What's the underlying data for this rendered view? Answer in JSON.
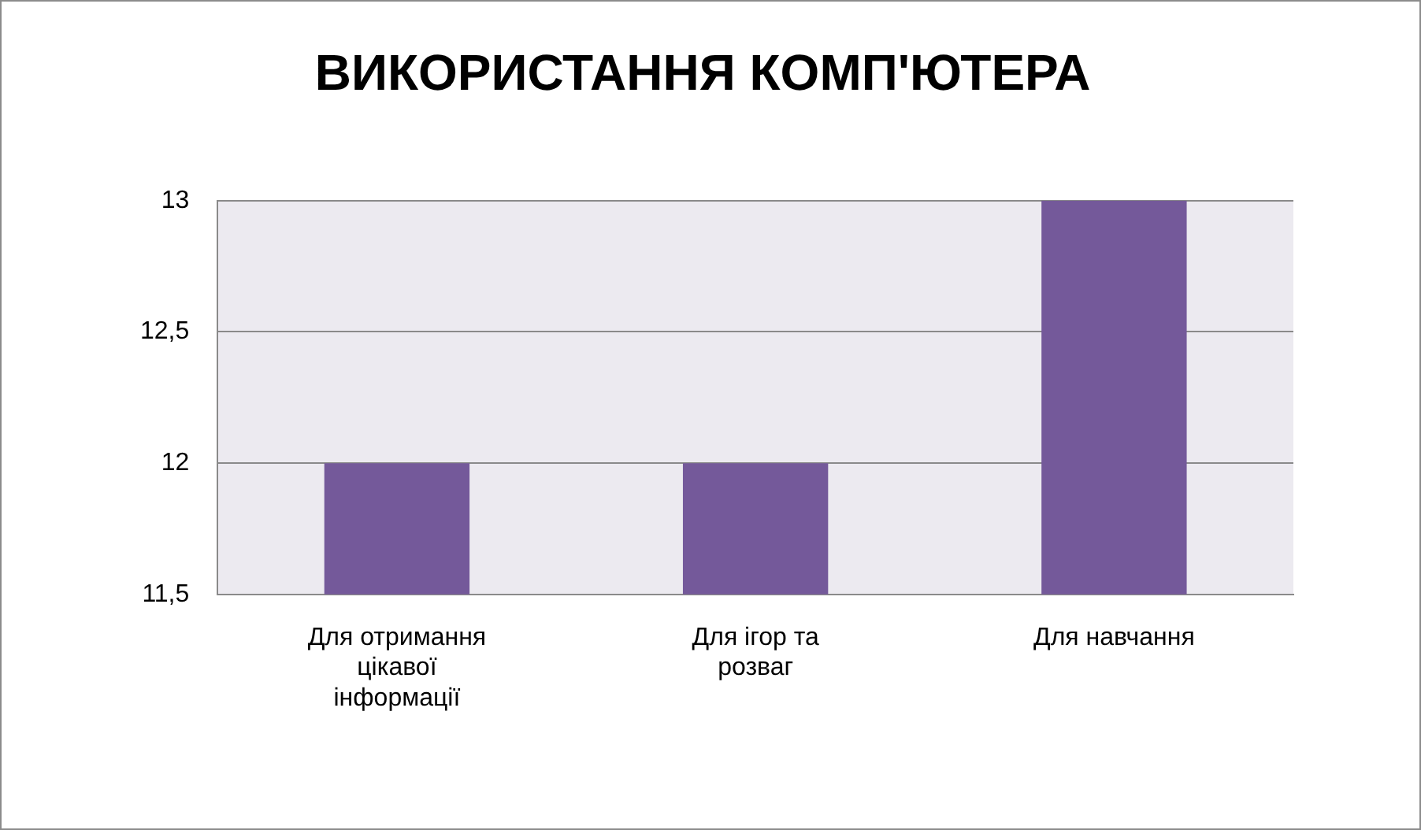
{
  "chart_data": {
    "type": "bar",
    "title": "ВИКОРИСТАННЯ КОМП'ЮТЕРА",
    "categories": [
      "Для отримання цікавої інформації",
      "Для ігор та розваг",
      "Для навчання"
    ],
    "values": [
      12,
      12,
      13
    ],
    "color": "#74599a",
    "ylim": [
      11.5,
      13
    ],
    "yticks": [
      {
        "value": 11.5,
        "label": "11,5"
      },
      12,
      {
        "value": 12.5,
        "label": "12,5"
      },
      13
    ],
    "grid": "y"
  }
}
